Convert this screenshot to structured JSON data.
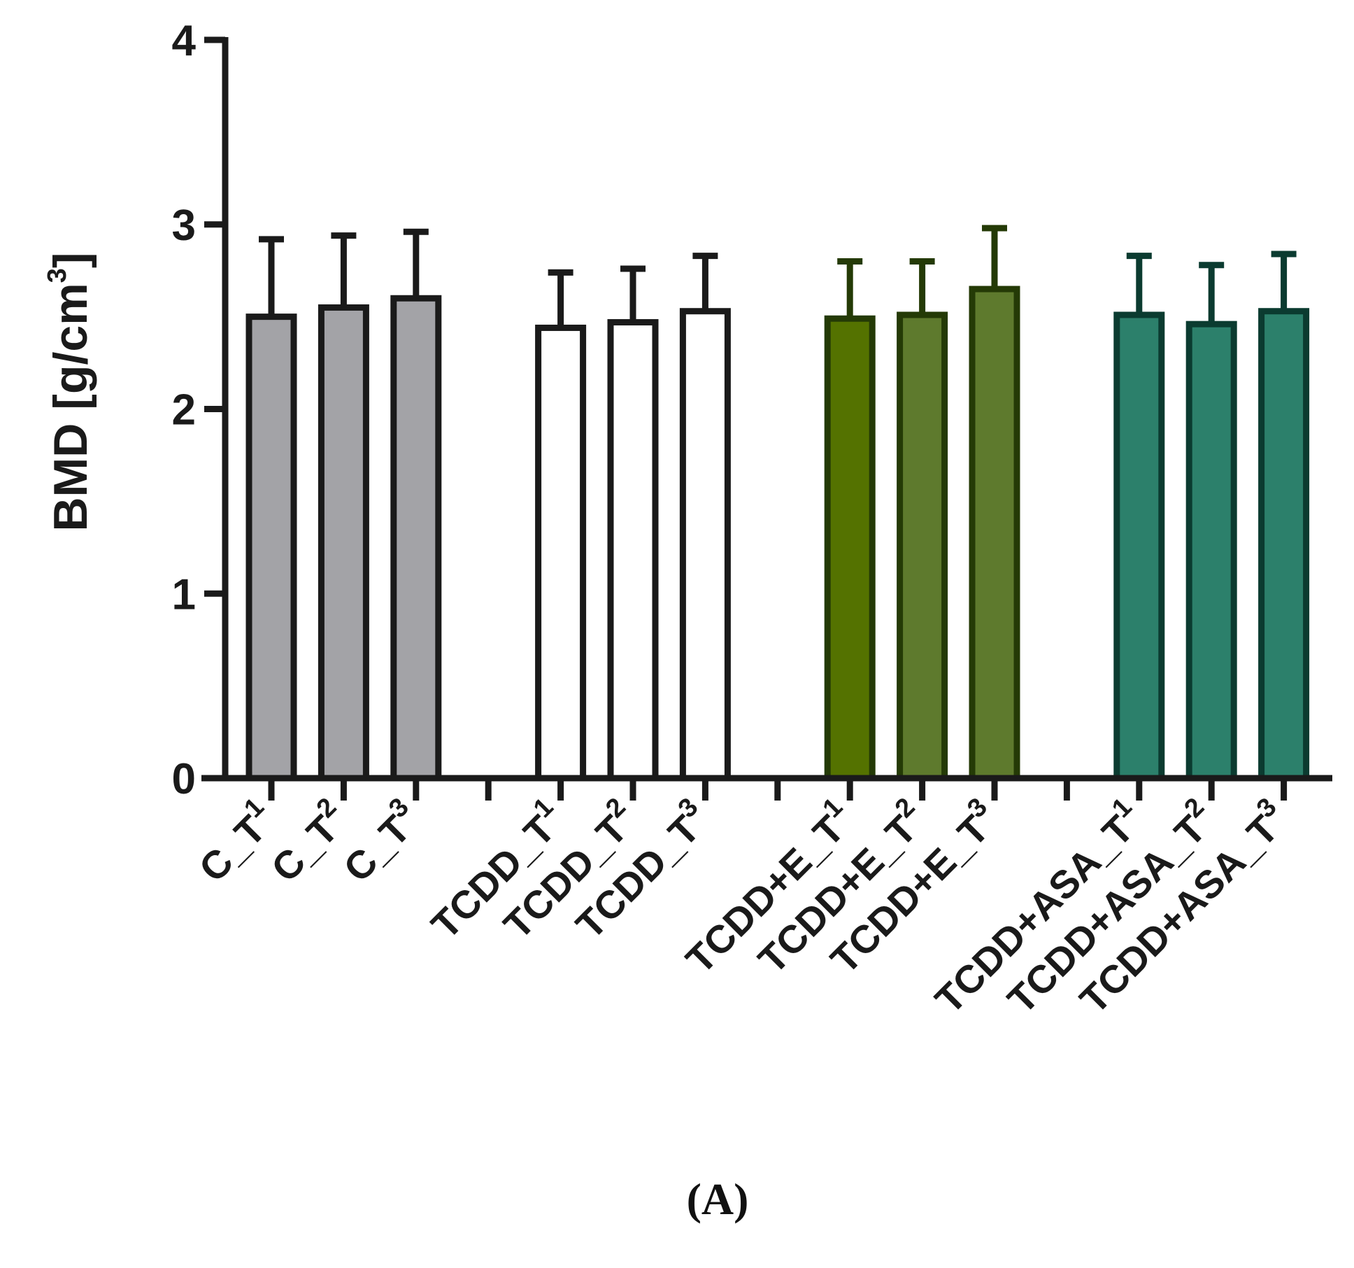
{
  "chart_data": {
    "type": "bar",
    "ylabel_main": "BMD [g/cm",
    "ylabel_sup": "3",
    "ylabel_close": "]",
    "ylim": [
      0,
      4
    ],
    "yticks": [
      "0",
      "1",
      "2",
      "3",
      "4"
    ],
    "caption": "(A)",
    "categories": [
      {
        "base": "C_T",
        "sub": "1",
        "value": 2.5,
        "error": 0.42,
        "group": 0
      },
      {
        "base": "C_T",
        "sub": "2",
        "value": 2.55,
        "error": 0.39,
        "group": 0
      },
      {
        "base": "C_T",
        "sub": "3",
        "value": 2.6,
        "error": 0.36,
        "group": 0
      },
      {
        "base": "TCDD_T",
        "sub": "1",
        "value": 2.44,
        "error": 0.3,
        "group": 1
      },
      {
        "base": "TCDD_T",
        "sub": "2",
        "value": 2.47,
        "error": 0.29,
        "group": 1
      },
      {
        "base": "TCDD_T",
        "sub": "3",
        "value": 2.53,
        "error": 0.3,
        "group": 1
      },
      {
        "base": "TCDD+E_T",
        "sub": "1",
        "value": 2.49,
        "error": 0.31,
        "group": 2
      },
      {
        "base": "TCDD+E_T",
        "sub": "2",
        "value": 2.51,
        "error": 0.29,
        "group": 2
      },
      {
        "base": "TCDD+E_T",
        "sub": "3",
        "value": 2.65,
        "error": 0.33,
        "group": 2
      },
      {
        "base": "TCDD+ASA_T",
        "sub": "1",
        "value": 2.51,
        "error": 0.32,
        "group": 3
      },
      {
        "base": "TCDD+ASA_T",
        "sub": "2",
        "value": 2.46,
        "error": 0.32,
        "group": 3
      },
      {
        "base": "TCDD+ASA_T",
        "sub": "3",
        "value": 2.53,
        "error": 0.31,
        "group": 3
      }
    ],
    "colors": {
      "bar_fills": [
        "#a3a3a7",
        "#a3a3a7",
        "#a3a3a7",
        "#ffffff",
        "#ffffff",
        "#ffffff",
        "#547200",
        "#5e7a2d",
        "#5e7a2d",
        "#2c806b",
        "#2c806b",
        "#2c806b"
      ],
      "bar_strokes": [
        "#1a1a1a",
        "#1a1a1a",
        "#1a1a1a",
        "#1a1a1a",
        "#1a1a1a",
        "#1a1a1a",
        "#243a06",
        "#243a06",
        "#243a06",
        "#0b3b30",
        "#0b3b30",
        "#0b3b30"
      ],
      "axis": "#1a1a1a"
    }
  }
}
